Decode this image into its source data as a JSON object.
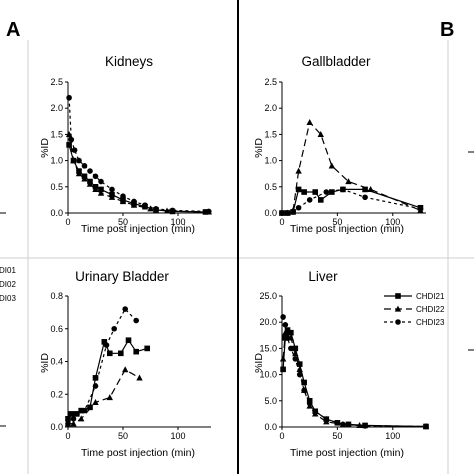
{
  "figure": {
    "panel_letters": [
      "A",
      "B"
    ],
    "edge_fragments": [
      "DI01",
      "DI02",
      "DI03"
    ]
  },
  "legend": {
    "entries": [
      {
        "name": "CHDI21",
        "marker": "square",
        "dash": "solid"
      },
      {
        "name": "CHDI22",
        "marker": "triangle",
        "dash": "long-dash"
      },
      {
        "name": "CHDI23",
        "marker": "circle",
        "dash": "short-dash"
      }
    ]
  },
  "chart_data": [
    {
      "type": "line",
      "title": "Kidneys",
      "xlabel": "Time post injection (min)",
      "ylabel": "%ID",
      "xlim": [
        0,
        130
      ],
      "ylim": [
        0,
        2.5
      ],
      "xticks": [
        0,
        50,
        100
      ],
      "yticks": [
        0.0,
        0.5,
        1.0,
        1.5,
        2.0,
        2.5
      ],
      "ytick_decimals": 1,
      "series": [
        {
          "name": "CHDI21",
          "marker": "square",
          "dash": "solid",
          "points": [
            [
              1,
              1.3
            ],
            [
              5,
              1.0
            ],
            [
              10,
              0.8
            ],
            [
              15,
              0.7
            ],
            [
              20,
              0.6
            ],
            [
              25,
              0.5
            ],
            [
              30,
              0.45
            ],
            [
              40,
              0.35
            ],
            [
              50,
              0.25
            ],
            [
              60,
              0.18
            ],
            [
              70,
              0.12
            ],
            [
              80,
              0.06
            ],
            [
              95,
              0.03
            ],
            [
              125,
              0.02
            ]
          ]
        },
        {
          "name": "CHDI22",
          "marker": "triangle",
          "dash": "long-dash",
          "points": [
            [
              1,
              1.5
            ],
            [
              5,
              1.0
            ],
            [
              10,
              0.75
            ],
            [
              15,
              0.65
            ],
            [
              20,
              0.55
            ],
            [
              25,
              0.45
            ],
            [
              30,
              0.38
            ],
            [
              40,
              0.3
            ],
            [
              50,
              0.22
            ],
            [
              60,
              0.15
            ],
            [
              75,
              0.08
            ],
            [
              90,
              0.04
            ],
            [
              128,
              0.02
            ]
          ]
        },
        {
          "name": "CHDI23",
          "marker": "circle",
          "dash": "short-dash",
          "points": [
            [
              1,
              2.2
            ],
            [
              3,
              1.4
            ],
            [
              6,
              1.2
            ],
            [
              10,
              1.0
            ],
            [
              15,
              0.9
            ],
            [
              20,
              0.8
            ],
            [
              25,
              0.7
            ],
            [
              30,
              0.6
            ],
            [
              40,
              0.45
            ],
            [
              50,
              0.32
            ],
            [
              60,
              0.22
            ],
            [
              70,
              0.15
            ],
            [
              80,
              0.08
            ],
            [
              95,
              0.05
            ],
            [
              128,
              0.03
            ]
          ]
        }
      ]
    },
    {
      "type": "line",
      "title": "Gallbladder",
      "xlabel": "Time post injection (min)",
      "ylabel": "%ID",
      "xlim": [
        0,
        130
      ],
      "ylim": [
        0,
        2.5
      ],
      "xticks": [
        0,
        50,
        100
      ],
      "yticks": [
        0.0,
        0.5,
        1.0,
        1.5,
        2.0,
        2.5
      ],
      "ytick_decimals": 1,
      "series": [
        {
          "name": "CHDI21",
          "marker": "square",
          "dash": "solid",
          "points": [
            [
              0,
              0.0
            ],
            [
              5,
              0.0
            ],
            [
              10,
              0.02
            ],
            [
              15,
              0.45
            ],
            [
              20,
              0.4
            ],
            [
              30,
              0.4
            ],
            [
              35,
              0.25
            ],
            [
              45,
              0.4
            ],
            [
              55,
              0.45
            ],
            [
              75,
              0.45
            ],
            [
              125,
              0.1
            ]
          ]
        },
        {
          "name": "CHDI22",
          "marker": "triangle",
          "dash": "long-dash",
          "points": [
            [
              0,
              0.0
            ],
            [
              5,
              0.0
            ],
            [
              10,
              0.05
            ],
            [
              15,
              0.8
            ],
            [
              25,
              1.73
            ],
            [
              35,
              1.5
            ],
            [
              45,
              0.9
            ],
            [
              60,
              0.6
            ],
            [
              80,
              0.45
            ],
            [
              125,
              0.05
            ]
          ]
        },
        {
          "name": "CHDI23",
          "marker": "circle",
          "dash": "short-dash",
          "points": [
            [
              0,
              0.0
            ],
            [
              5,
              0.0
            ],
            [
              10,
              0.02
            ],
            [
              15,
              0.1
            ],
            [
              25,
              0.25
            ],
            [
              40,
              0.4
            ],
            [
              55,
              0.45
            ],
            [
              75,
              0.3
            ],
            [
              125,
              0.08
            ]
          ]
        }
      ]
    },
    {
      "type": "line",
      "title": "Urinary Bladder",
      "xlabel": "Time post injection (min)",
      "ylabel": "%ID",
      "xlim": [
        0,
        130
      ],
      "ylim": [
        0,
        0.8
      ],
      "xticks": [
        0,
        50,
        100
      ],
      "yticks": [
        0,
        0.2,
        0.4,
        0.6,
        0.8
      ],
      "ytick_decimals": 1,
      "series": [
        {
          "name": "CHDI21",
          "marker": "square",
          "dash": "solid",
          "points": [
            [
              0,
              0.05
            ],
            [
              3,
              0.08
            ],
            [
              8,
              0.08
            ],
            [
              12,
              0.1
            ],
            [
              20,
              0.12
            ],
            [
              25,
              0.3
            ],
            [
              33,
              0.52
            ],
            [
              38,
              0.45
            ],
            [
              48,
              0.45
            ],
            [
              55,
              0.53
            ],
            [
              62,
              0.46
            ],
            [
              72,
              0.48
            ]
          ]
        },
        {
          "name": "CHDI22",
          "marker": "triangle",
          "dash": "long-dash",
          "points": [
            [
              0,
              0.02
            ],
            [
              5,
              0.02
            ],
            [
              12,
              0.05
            ],
            [
              25,
              0.15
            ],
            [
              38,
              0.18
            ],
            [
              52,
              0.35
            ],
            [
              65,
              0.3
            ]
          ]
        },
        {
          "name": "CHDI23",
          "marker": "circle",
          "dash": "short-dash",
          "points": [
            [
              0,
              0.02
            ],
            [
              5,
              0.05
            ],
            [
              15,
              0.1
            ],
            [
              25,
              0.25
            ],
            [
              35,
              0.5
            ],
            [
              42,
              0.6
            ],
            [
              52,
              0.72
            ],
            [
              62,
              0.65
            ]
          ]
        }
      ]
    },
    {
      "type": "line",
      "title": "Liver",
      "xlabel": "Time post injection (min)",
      "ylabel": "%ID",
      "xlim": [
        0,
        130
      ],
      "ylim": [
        0,
        25
      ],
      "xticks": [
        0,
        50,
        100
      ],
      "yticks": [
        0.0,
        5.0,
        10.0,
        15.0,
        20.0,
        25.0
      ],
      "ytick_decimals": 1,
      "series": [
        {
          "name": "CHDI21",
          "marker": "square",
          "dash": "solid",
          "points": [
            [
              1,
              11.0
            ],
            [
              3,
              17.0
            ],
            [
              5,
              18.5
            ],
            [
              8,
              18.0
            ],
            [
              12,
              15.0
            ],
            [
              16,
              12.0
            ],
            [
              20,
              8.5
            ],
            [
              25,
              5.0
            ],
            [
              30,
              3.0
            ],
            [
              40,
              1.5
            ],
            [
              50,
              0.8
            ],
            [
              60,
              0.5
            ],
            [
              75,
              0.3
            ],
            [
              130,
              0.1
            ]
          ]
        },
        {
          "name": "CHDI22",
          "marker": "triangle",
          "dash": "long-dash",
          "points": [
            [
              1,
              13.0
            ],
            [
              3,
              18.0
            ],
            [
              5,
              18.0
            ],
            [
              8,
              17.0
            ],
            [
              12,
              14.0
            ],
            [
              16,
              11.0
            ],
            [
              20,
              7.0
            ],
            [
              25,
              4.0
            ],
            [
              30,
              2.5
            ],
            [
              40,
              1.0
            ],
            [
              55,
              0.5
            ],
            [
              70,
              0.3
            ],
            [
              130,
              0.1
            ]
          ]
        },
        {
          "name": "CHDI23",
          "marker": "circle",
          "dash": "short-dash",
          "points": [
            [
              1,
              21.0
            ],
            [
              3,
              19.5
            ],
            [
              5,
              17.0
            ],
            [
              8,
              15.0
            ],
            [
              12,
              13.0
            ],
            [
              16,
              10.0
            ],
            [
              20,
              7.0
            ],
            [
              25,
              4.5
            ],
            [
              30,
              3.0
            ],
            [
              40,
              1.5
            ],
            [
              55,
              0.5
            ],
            [
              75,
              0.2
            ],
            [
              130,
              0.1
            ]
          ]
        }
      ]
    }
  ]
}
